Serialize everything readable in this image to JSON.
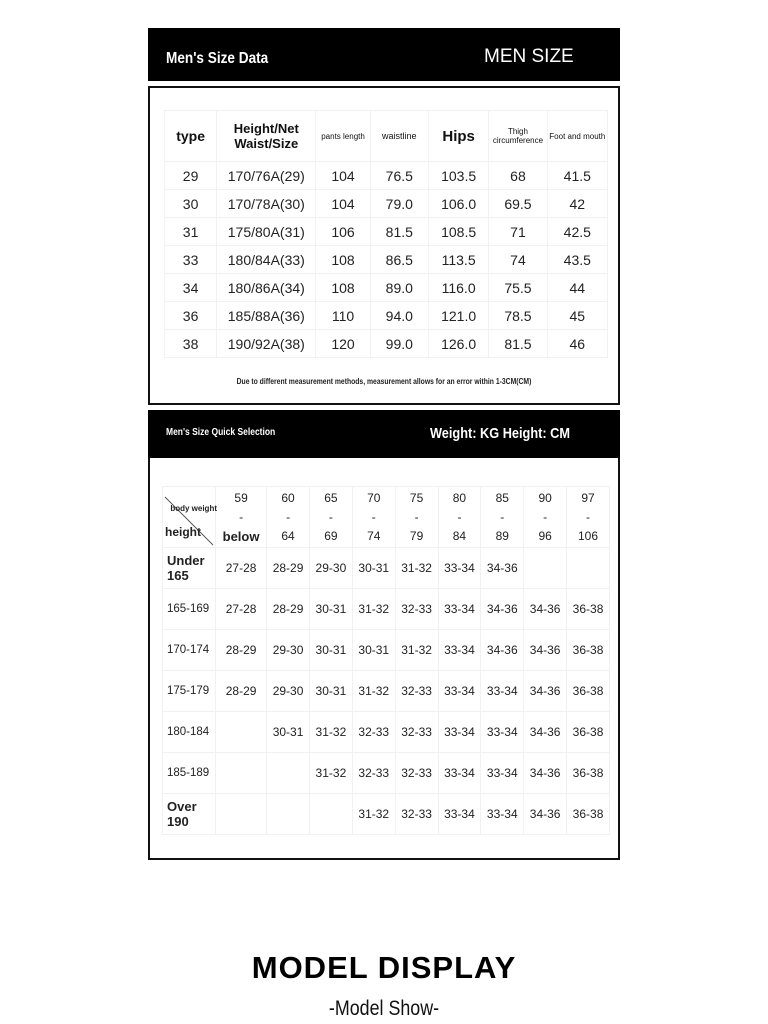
{
  "size_data": {
    "title": "Men's Size Data",
    "badge": "MEN SIZE",
    "headers": [
      "type",
      "Height/Net Waist/Size",
      "pants length",
      "waistline",
      "Hips",
      "Thigh circumference",
      "Foot and mouth"
    ],
    "rows": [
      [
        "29",
        "170/76A(29)",
        "104",
        "76.5",
        "103.5",
        "68",
        "41.5"
      ],
      [
        "30",
        "170/78A(30)",
        "104",
        "79.0",
        "106.0",
        "69.5",
        "42"
      ],
      [
        "31",
        "175/80A(31)",
        "106",
        "81.5",
        "108.5",
        "71",
        "42.5"
      ],
      [
        "33",
        "180/84A(33)",
        "108",
        "86.5",
        "113.5",
        "74",
        "43.5"
      ],
      [
        "34",
        "180/86A(34)",
        "108",
        "89.0",
        "116.0",
        "75.5",
        "44"
      ],
      [
        "36",
        "185/88A(36)",
        "110",
        "94.0",
        "121.0",
        "78.5",
        "45"
      ],
      [
        "38",
        "190/92A(38)",
        "120",
        "99.0",
        "126.0",
        "81.5",
        "46"
      ]
    ],
    "note": "Due to different measurement methods, measurement allows for an error within 1-3CM(CM)"
  },
  "quick_selection": {
    "title": "Men's Size Quick Selection",
    "units": "Weight: KG Height: CM",
    "corner_top": "body weight",
    "corner_bottom": "height",
    "weight_ranges": [
      [
        "59",
        "-",
        "below"
      ],
      [
        "60",
        "-",
        "64"
      ],
      [
        "65",
        "-",
        "69"
      ],
      [
        "70",
        "-",
        "74"
      ],
      [
        "75",
        "-",
        "79"
      ],
      [
        "80",
        "-",
        "84"
      ],
      [
        "85",
        "-",
        "89"
      ],
      [
        "90",
        "-",
        "96"
      ],
      [
        "97",
        "-",
        "106"
      ]
    ],
    "rows": [
      {
        "height": "Under 165",
        "sizes": [
          "27-28",
          "28-29",
          "29-30",
          "30-31",
          "31-32",
          "33-34",
          "34-36",
          "",
          ""
        ]
      },
      {
        "height": "165-169",
        "sizes": [
          "27-28",
          "28-29",
          "30-31",
          "31-32",
          "32-33",
          "33-34",
          "34-36",
          "34-36",
          "36-38"
        ]
      },
      {
        "height": "170-174",
        "sizes": [
          "28-29",
          "29-30",
          "30-31",
          "30-31",
          "31-32",
          "33-34",
          "34-36",
          "34-36",
          "36-38"
        ]
      },
      {
        "height": "175-179",
        "sizes": [
          "28-29",
          "29-30",
          "30-31",
          "31-32",
          "32-33",
          "33-34",
          "33-34",
          "34-36",
          "36-38"
        ]
      },
      {
        "height": "180-184",
        "sizes": [
          "",
          "30-31",
          "31-32",
          "32-33",
          "32-33",
          "33-34",
          "33-34",
          "34-36",
          "36-38"
        ]
      },
      {
        "height": "185-189",
        "sizes": [
          "",
          "",
          "31-32",
          "32-33",
          "32-33",
          "33-34",
          "33-34",
          "34-36",
          "36-38"
        ]
      },
      {
        "height": "Over 190",
        "sizes": [
          "",
          "",
          "",
          "31-32",
          "32-33",
          "33-34",
          "33-34",
          "34-36",
          "36-38"
        ]
      }
    ]
  },
  "footer": {
    "title": "MODEL DISPLAY",
    "subtitle": "-Model Show-"
  }
}
